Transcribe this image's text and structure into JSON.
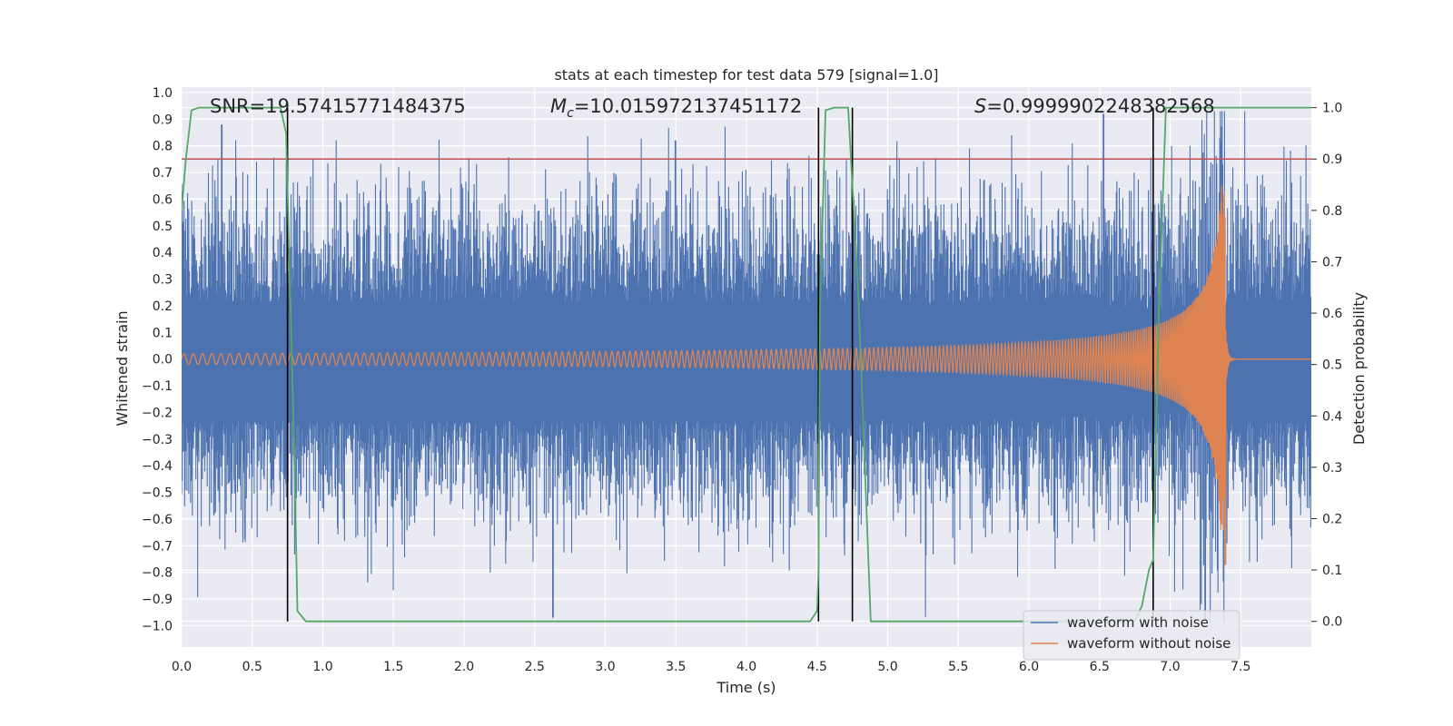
{
  "chart_data": {
    "type": "line",
    "title": "stats at each timestep for test data 579 [signal=1.0]",
    "xlabel": "Time (s)",
    "ylabel_left": "Whitened strain",
    "ylabel_right": "Detection probability",
    "xlim": [
      0.0,
      8.0
    ],
    "ylim_left": [
      -1.08,
      1.02
    ],
    "ylim_right": [
      -0.05,
      1.04
    ],
    "x_ticks": [
      "0.0",
      "0.5",
      "1.0",
      "1.5",
      "2.0",
      "2.5",
      "3.0",
      "3.5",
      "4.0",
      "4.5",
      "5.0",
      "5.5",
      "6.0",
      "6.5",
      "7.0",
      "7.5"
    ],
    "x_tick_values": [
      0.0,
      0.5,
      1.0,
      1.5,
      2.0,
      2.5,
      3.0,
      3.5,
      4.0,
      4.5,
      5.0,
      5.5,
      6.0,
      6.5,
      7.0,
      7.5
    ],
    "y_left_ticks": [
      "1.0",
      "0.9",
      "0.8",
      "0.7",
      "0.6",
      "0.5",
      "0.4",
      "0.3",
      "0.2",
      "0.1",
      "0.0",
      "−0.1",
      "−0.2",
      "−0.3",
      "−0.4",
      "−0.5",
      "−0.6",
      "−0.7",
      "−0.8",
      "−0.9",
      "−1.0"
    ],
    "y_left_tick_values": [
      1.0,
      0.9,
      0.8,
      0.7,
      0.6,
      0.5,
      0.4,
      0.3,
      0.2,
      0.1,
      0.0,
      -0.1,
      -0.2,
      -0.3,
      -0.4,
      -0.5,
      -0.6,
      -0.7,
      -0.8,
      -0.9,
      -1.0
    ],
    "y_right_ticks": [
      "1.0",
      "0.9",
      "0.8",
      "0.7",
      "0.6",
      "0.5",
      "0.4",
      "0.3",
      "0.2",
      "0.1",
      "0.0"
    ],
    "y_right_tick_values": [
      1.0,
      0.9,
      0.8,
      0.7,
      0.6,
      0.5,
      0.4,
      0.3,
      0.2,
      0.1,
      0.0
    ],
    "annotations": {
      "snr": "SNR=19.57415771484375",
      "mc_symbol": "M",
      "mc_sub": "c",
      "mc_value": "=10.015972137451172",
      "s_symbol": "S",
      "s_value": "=0.9999902248382568"
    },
    "threshold": {
      "value": 0.9,
      "axis": "right",
      "color": "#c44e52"
    },
    "vertical_markers": [
      0.75,
      4.51,
      4.75,
      6.88
    ],
    "series": [
      {
        "name": "waveform with noise",
        "color": "#4c72b0",
        "description": "whitened noisy strain, 4096 Hz",
        "typical_amplitude": 0.4,
        "peak_values": [
          {
            "x": 0.28,
            "y": 0.88
          },
          {
            "x": 2.63,
            "y": -0.97
          },
          {
            "x": 3.5,
            "y": 0.82
          },
          {
            "x": 6.53,
            "y": 0.92
          },
          {
            "x": 7.25,
            "y": -0.98
          }
        ]
      },
      {
        "name": "waveform without noise",
        "color": "#dd8452",
        "description": "chirp, amplitude grows until merger at ~7.4 s then ringdown",
        "start_amplitude": 0.02,
        "merger_time": 7.39,
        "peak_max": 0.53,
        "peak_min": -0.77,
        "start_frequency_hz": 15,
        "end_frequency_hz": 60
      },
      {
        "name": "detection probability",
        "axis": "right",
        "color": "#55a868",
        "x": [
          0.0,
          0.03,
          0.07,
          0.12,
          0.2,
          0.7,
          0.74,
          0.8,
          0.82,
          0.88,
          1.5,
          4.45,
          4.5,
          4.51,
          4.52,
          4.56,
          4.62,
          4.65,
          4.72,
          4.79,
          4.88,
          5.5,
          6.75,
          6.8,
          6.85,
          6.88,
          6.92,
          6.97,
          7.2,
          8.0
        ],
        "y": [
          0.8,
          0.9,
          0.995,
          1.0,
          1.0,
          1.0,
          0.95,
          0.3,
          0.02,
          0.0,
          0.0,
          0.0,
          0.02,
          0.1,
          0.6,
          0.995,
          1.0,
          1.0,
          1.0,
          0.65,
          0.0,
          0.0,
          0.0,
          0.03,
          0.1,
          0.12,
          0.6,
          1.0,
          1.0,
          1.0
        ]
      }
    ],
    "legend": {
      "placement": "lower-right",
      "entries": [
        "waveform with noise",
        "waveform without noise"
      ]
    }
  }
}
